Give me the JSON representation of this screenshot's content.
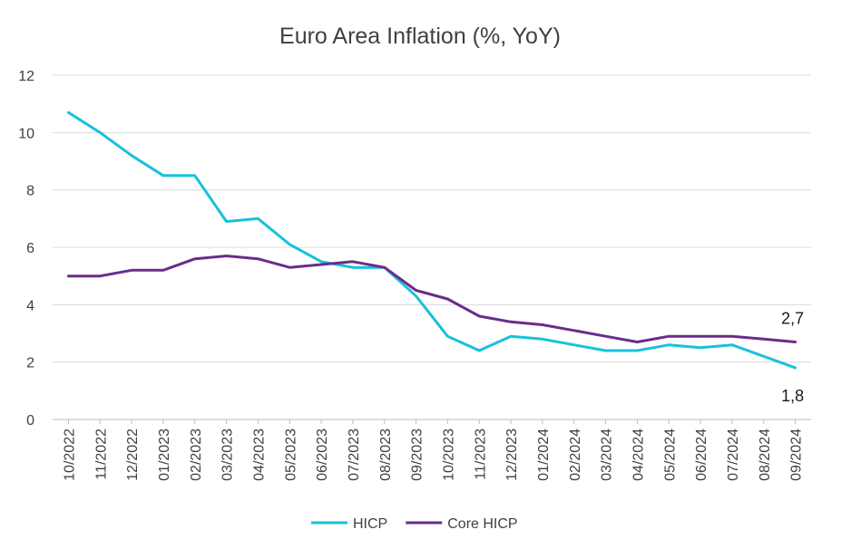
{
  "chart_data": {
    "type": "line",
    "title": "Euro Area Inflation (%, YoY)",
    "categories": [
      "10/2022",
      "11/2022",
      "12/2022",
      "01/2023",
      "02/2023",
      "03/2023",
      "04/2023",
      "05/2023",
      "06/2023",
      "07/2023",
      "08/2023",
      "09/2023",
      "10/2023",
      "11/2023",
      "12/2023",
      "01/2024",
      "02/2024",
      "03/2024",
      "04/2024",
      "05/2024",
      "06/2024",
      "07/2024",
      "08/2024",
      "09/2024"
    ],
    "series": [
      {
        "name": "HICP",
        "color": "#17c1dc",
        "values": [
          10.7,
          10.0,
          9.2,
          8.5,
          8.5,
          6.9,
          7.0,
          6.1,
          5.5,
          5.3,
          5.3,
          4.3,
          2.9,
          2.4,
          2.9,
          2.8,
          2.6,
          2.4,
          2.4,
          2.6,
          2.5,
          2.6,
          2.2,
          1.8
        ],
        "end_label": "1,8"
      },
      {
        "name": "Core HICP",
        "color": "#6b2c8a",
        "values": [
          5.0,
          5.0,
          5.2,
          5.2,
          5.6,
          5.7,
          5.6,
          5.3,
          5.4,
          5.5,
          5.3,
          4.5,
          4.2,
          3.6,
          3.4,
          3.3,
          3.1,
          2.9,
          2.7,
          2.9,
          2.9,
          2.9,
          2.8,
          2.7
        ],
        "end_label": "2,7"
      }
    ],
    "yticks": [
      "0",
      "2",
      "4",
      "6",
      "8",
      "10",
      "12"
    ],
    "ylim": [
      0,
      12
    ],
    "grid": true,
    "legend_position": "bottom"
  }
}
